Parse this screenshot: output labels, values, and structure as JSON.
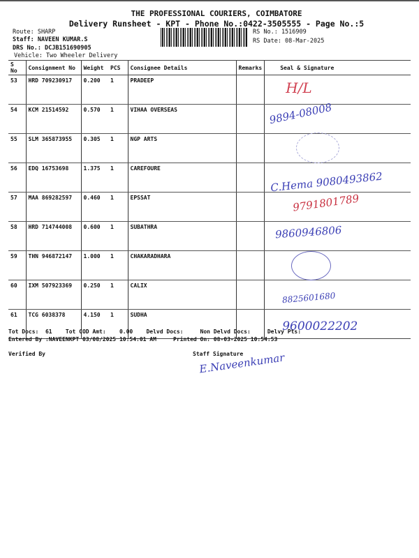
{
  "header": {
    "company": "THE PROFESSIONAL COURIERS, COIMBATORE",
    "subtitle": "Delivery Runsheet - KPT - Phone No.:0422-3505555 - Page No.:5",
    "route": "Route: SHARP",
    "staff": "Staff: NAVEEN KUMAR.S",
    "drs": "DRS No.: DCJB151690905",
    "vehicle": "Vehicle: Two Wheeler Delivery",
    "rs_no": "RS No.: 1516909",
    "rs_date": "RS Date: 08-Mar-2025"
  },
  "columns": [
    "S No",
    "Consignment No",
    "Weight",
    "PCS",
    "Consignee Details",
    "Remarks",
    "Seal & Signature"
  ],
  "rows": [
    {
      "sno": "53",
      "consignment": "HRD 709230917",
      "weight": "0.200",
      "pcs": "1",
      "consignee": "PRADEEP",
      "remarks": "",
      "signature": "H/L"
    },
    {
      "sno": "54",
      "consignment": "KCM 21514592",
      "weight": "0.570",
      "pcs": "1",
      "consignee": "VIHAA OVERSEAS",
      "remarks": "",
      "signature": "9894-08008"
    },
    {
      "sno": "55",
      "consignment": "SLM 365873955",
      "weight": "0.305",
      "pcs": "1",
      "consignee": "NGP ARTS",
      "remarks": "",
      "signature": ""
    },
    {
      "sno": "56",
      "consignment": "EDQ 16753698",
      "weight": "1.375",
      "pcs": "1",
      "consignee": "CAREFOURE",
      "remarks": "",
      "signature": "C.Hema 9080493862"
    },
    {
      "sno": "57",
      "consignment": "MAA 869282597",
      "weight": "0.460",
      "pcs": "1",
      "consignee": "EPSSAT",
      "remarks": "",
      "signature": "9791801789"
    },
    {
      "sno": "58",
      "consignment": "HRD 714744008",
      "weight": "0.600",
      "pcs": "1",
      "consignee": "SUBATHRA",
      "remarks": "",
      "signature": "9860946806"
    },
    {
      "sno": "59",
      "consignment": "THN 946872147",
      "weight": "1.000",
      "pcs": "1",
      "consignee": "CHAKARADHARA",
      "remarks": "",
      "signature": ""
    },
    {
      "sno": "60",
      "consignment": "IXM 507923369",
      "weight": "0.250",
      "pcs": "1",
      "consignee": "CALIX",
      "remarks": "",
      "signature": "8825601680"
    },
    {
      "sno": "61",
      "consignment": "TCG 6038378",
      "weight": "4.150",
      "pcs": "1",
      "consignee": "SUDHA",
      "remarks": "",
      "signature": "9600022202"
    }
  ],
  "footer": {
    "totals": "Tot Docs:  61    Tot COD Amt:    0.00    Delvd Docs:     Non Delvd Docs:     Delvy Pts:",
    "entered": "Entered By :NAVEENKPT 03/08/2025 10:54:01 AM     Printed On: 08-03-2025 10:54:53",
    "verified": "Verified By",
    "staff_signature": "Staff Signature"
  }
}
